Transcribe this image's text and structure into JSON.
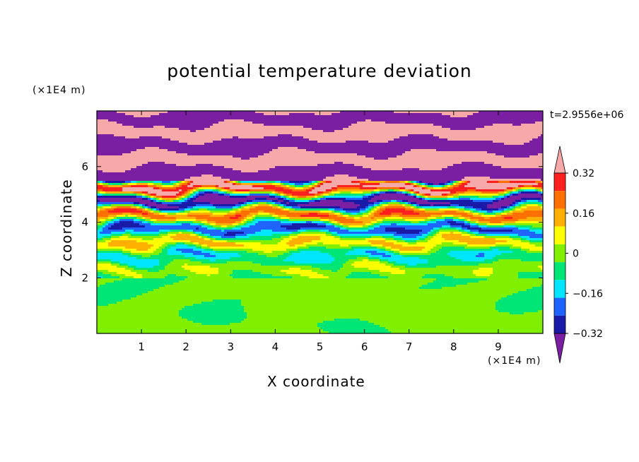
{
  "chart_data": {
    "type": "heatmap",
    "title": "potential temperature deviation",
    "xlabel": "X coordinate",
    "ylabel": "Z coordinate",
    "x_unit": "(×1E4 m)",
    "y_unit": "(×1E4 m)",
    "time_label": "t=2.9556e+06",
    "xlim": [
      0,
      10
    ],
    "ylim": [
      0,
      8
    ],
    "x_ticks": [
      "1",
      "2",
      "3",
      "4",
      "5",
      "6",
      "7",
      "8",
      "9"
    ],
    "y_ticks": [
      "2",
      "4",
      "6"
    ],
    "colorbar": {
      "levels": [
        -0.4,
        -0.32,
        -0.24,
        -0.16,
        -0.08,
        0,
        0.08,
        0.16,
        0.24,
        0.32,
        0.4
      ],
      "tick_labels": [
        "0.32",
        "0.16",
        "0",
        "−0.16",
        "−0.32"
      ],
      "tick_values": [
        0.32,
        0.16,
        0,
        -0.16,
        -0.32
      ],
      "colors_low_to_high": [
        "#7a1fa2",
        "#1a1aa8",
        "#1f64ff",
        "#00e6ff",
        "#00e676",
        "#80f000",
        "#ffff00",
        "#ffb000",
        "#ff7000",
        "#ff1f1f",
        "#f7a8a8"
      ],
      "extend": "both"
    }
  }
}
